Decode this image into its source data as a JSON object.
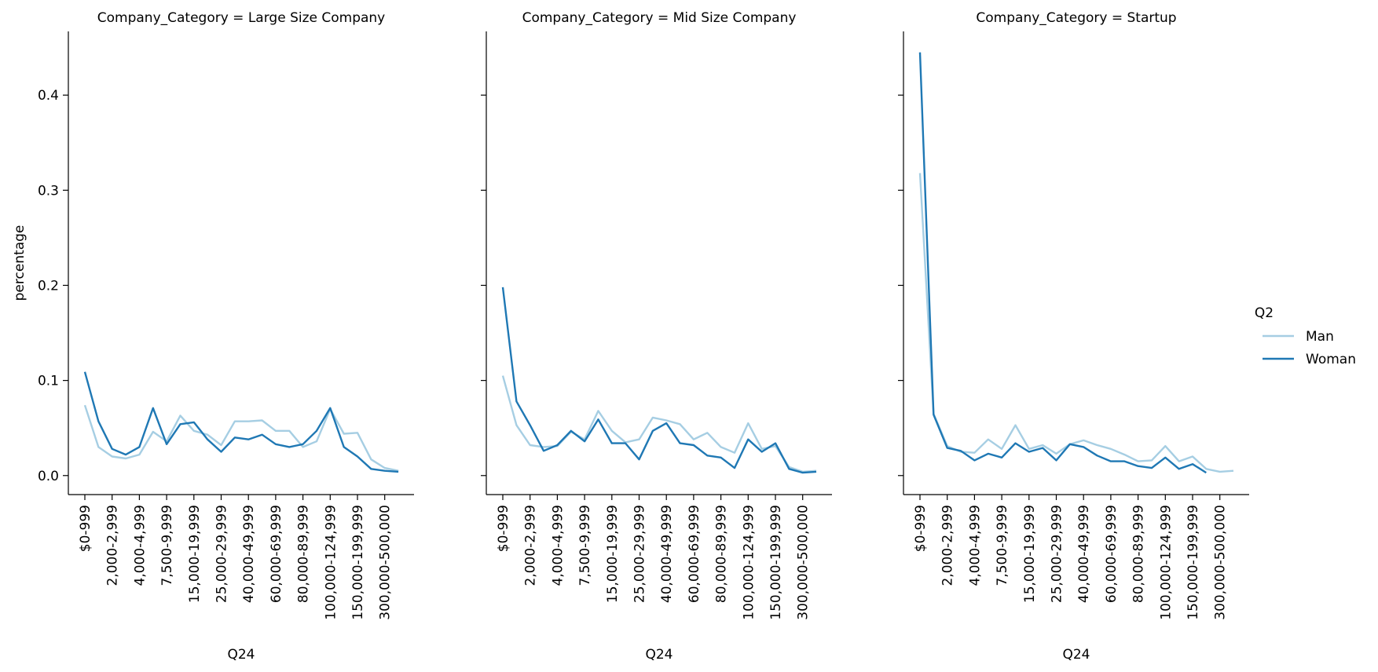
{
  "legend": {
    "title": "Q2",
    "entries": [
      {
        "label": "Man",
        "color": "#a6cee3"
      },
      {
        "label": "Woman",
        "color": "#1f78b4"
      }
    ]
  },
  "chart_data": [
    {
      "type": "line",
      "title": "Company_Category = Large Size Company",
      "xlabel": "Q24",
      "ylabel": "percentage",
      "ylim": [
        -0.02,
        0.467
      ],
      "yticks": [
        0.0,
        0.1,
        0.2,
        0.3,
        0.4
      ],
      "ytick_labels": [
        "0.0",
        "0.1",
        "0.2",
        "0.3",
        "0.4"
      ],
      "x_tick_labels": [
        "$0-999",
        "2,000-2,999",
        "4,000-4,999",
        "7,500-9,999",
        "15,000-19,999",
        "25,000-29,999",
        "40,000-49,999",
        "60,000-69,999",
        "80,000-89,999",
        "100,000-124,999",
        "150,000-199,999",
        "300,000-500,000"
      ],
      "x_tick_every": 2,
      "n_categories": 25,
      "series": [
        {
          "name": "Man",
          "color": "#a6cee3",
          "values": [
            0.074,
            0.03,
            0.02,
            0.018,
            0.022,
            0.046,
            0.036,
            0.063,
            0.047,
            0.043,
            0.032,
            0.057,
            0.057,
            0.058,
            0.047,
            0.047,
            0.03,
            0.036,
            0.07,
            0.044,
            0.045,
            0.017,
            0.008,
            0.005,
            null
          ]
        },
        {
          "name": "Woman",
          "color": "#1f78b4",
          "values": [
            0.109,
            0.057,
            0.028,
            0.022,
            0.03,
            0.071,
            0.033,
            0.054,
            0.056,
            0.038,
            0.025,
            0.04,
            0.038,
            0.043,
            0.033,
            0.03,
            0.033,
            0.047,
            0.071,
            0.03,
            0.02,
            0.007,
            0.005,
            0.004,
            null
          ]
        }
      ]
    },
    {
      "type": "line",
      "title": "Company_Category = Mid Size Company",
      "xlabel": "Q24",
      "ylabel": "",
      "ylim": [
        -0.02,
        0.467
      ],
      "yticks": [
        0.0,
        0.1,
        0.2,
        0.3,
        0.4
      ],
      "ytick_labels": [],
      "x_tick_labels": [
        "$0-999",
        "2,000-2,999",
        "4,000-4,999",
        "7,500-9,999",
        "15,000-19,999",
        "25,000-29,999",
        "40,000-49,999",
        "60,000-69,999",
        "80,000-89,999",
        "100,000-124,999",
        "150,000-199,999",
        "300,000-500,000"
      ],
      "x_tick_every": 2,
      "n_categories": 25,
      "series": [
        {
          "name": "Man",
          "color": "#a6cee3",
          "values": [
            0.105,
            0.053,
            0.032,
            0.03,
            0.031,
            0.046,
            0.038,
            0.068,
            0.047,
            0.035,
            0.038,
            0.061,
            0.058,
            0.054,
            0.038,
            0.045,
            0.03,
            0.024,
            0.055,
            0.028,
            0.031,
            0.009,
            0.004,
            0.005,
            null
          ]
        },
        {
          "name": "Woman",
          "color": "#1f78b4",
          "values": [
            0.198,
            0.078,
            0.053,
            0.026,
            0.032,
            0.047,
            0.036,
            0.059,
            0.034,
            0.034,
            0.017,
            0.047,
            0.055,
            0.034,
            0.032,
            0.021,
            0.019,
            0.008,
            0.038,
            0.025,
            0.034,
            0.007,
            0.003,
            0.004,
            null
          ]
        }
      ]
    },
    {
      "type": "line",
      "title": "Company_Category = Startup",
      "xlabel": "Q24",
      "ylabel": "",
      "ylim": [
        -0.02,
        0.467
      ],
      "yticks": [
        0.0,
        0.1,
        0.2,
        0.3,
        0.4
      ],
      "ytick_labels": [],
      "x_tick_labels": [
        "$0-999",
        "2,000-2,999",
        "4,000-4,999",
        "7,500-9,999",
        "15,000-19,999",
        "25,000-29,999",
        "40,000-49,999",
        "60,000-69,999",
        "80,000-89,999",
        "100,000-124,999",
        "150,000-199,999",
        "300,000-500,000"
      ],
      "x_tick_every": 2,
      "n_categories": 25,
      "series": [
        {
          "name": "Man",
          "color": "#a6cee3",
          "values": [
            0.318,
            0.065,
            0.031,
            0.025,
            0.024,
            0.038,
            0.028,
            0.053,
            0.028,
            0.032,
            0.023,
            0.033,
            0.037,
            0.032,
            0.028,
            0.022,
            0.015,
            0.016,
            0.031,
            0.015,
            0.02,
            0.007,
            0.004,
            0.005,
            null
          ]
        },
        {
          "name": "Woman",
          "color": "#1f78b4",
          "values": [
            0.445,
            0.064,
            0.029,
            0.026,
            0.016,
            0.023,
            0.019,
            0.034,
            0.025,
            0.029,
            0.016,
            0.033,
            0.03,
            0.021,
            0.015,
            0.015,
            0.01,
            0.008,
            0.019,
            0.007,
            0.012,
            0.003,
            null,
            null,
            null
          ]
        }
      ]
    }
  ]
}
